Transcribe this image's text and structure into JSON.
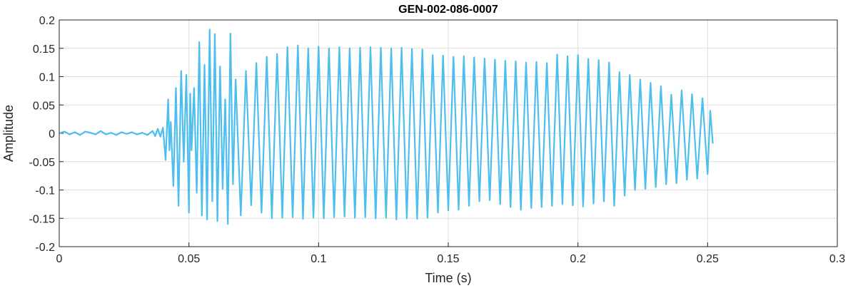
{
  "chart_data": {
    "type": "line",
    "title": "GEN-002-086-0007",
    "xlabel": "Time (s)",
    "ylabel": "Amplitude",
    "xlim": [
      0,
      0.3
    ],
    "ylim": [
      -0.2,
      0.2
    ],
    "grid": true,
    "x_ticks": [
      "0",
      "0.05",
      "0.1",
      "0.15",
      "0.2",
      "0.25",
      "0.3"
    ],
    "y_ticks": [
      "0.2",
      "0.15",
      "0.1",
      "0.05",
      "0",
      "-0.05",
      "-0.1",
      "-0.15",
      "-0.2"
    ],
    "series": [
      {
        "color": "#4DBEEE",
        "x": [
          0,
          0.002,
          0.004,
          0.006,
          0.008,
          0.01,
          0.012,
          0.014,
          0.016,
          0.018,
          0.02,
          0.022,
          0.024,
          0.026,
          0.028,
          0.03,
          0.032,
          0.034,
          0.036,
          0.037,
          0.038,
          0.039,
          0.04,
          0.041,
          0.042,
          0.0425,
          0.043,
          0.044,
          0.045,
          0.046,
          0.047,
          0.048,
          0.049,
          0.05,
          0.0505,
          0.051,
          0.052,
          0.053,
          0.054,
          0.055,
          0.056,
          0.057,
          0.058,
          0.059,
          0.06,
          0.061,
          0.062,
          0.063,
          0.064,
          0.065,
          0.066,
          0.067,
          0.068,
          0.07,
          0.072,
          0.074,
          0.076,
          0.078,
          0.08,
          0.082,
          0.084,
          0.086,
          0.088,
          0.09,
          0.092,
          0.094,
          0.096,
          0.098,
          0.1,
          0.102,
          0.104,
          0.106,
          0.108,
          0.11,
          0.112,
          0.114,
          0.116,
          0.118,
          0.12,
          0.122,
          0.124,
          0.126,
          0.128,
          0.13,
          0.132,
          0.134,
          0.136,
          0.138,
          0.14,
          0.142,
          0.144,
          0.146,
          0.148,
          0.15,
          0.152,
          0.154,
          0.156,
          0.158,
          0.16,
          0.162,
          0.164,
          0.166,
          0.168,
          0.17,
          0.172,
          0.174,
          0.176,
          0.178,
          0.18,
          0.182,
          0.184,
          0.186,
          0.188,
          0.19,
          0.192,
          0.194,
          0.196,
          0.198,
          0.2,
          0.202,
          0.204,
          0.206,
          0.208,
          0.21,
          0.212,
          0.214,
          0.216,
          0.218,
          0.22,
          0.222,
          0.224,
          0.226,
          0.228,
          0.23,
          0.232,
          0.234,
          0.236,
          0.238,
          0.24,
          0.242,
          0.244,
          0.246,
          0.248,
          0.25,
          0.251,
          0.252
        ],
        "y": [
          0,
          0.003,
          -0.002,
          0.002,
          -0.003,
          0.003,
          0.001,
          -0.002,
          0.004,
          -0.002,
          0.001,
          -0.003,
          0.002,
          -0.001,
          0.002,
          -0.002,
          0.001,
          -0.003,
          0.004,
          -0.005,
          0.008,
          -0.006,
          0.01,
          -0.047,
          0.06,
          -0.03,
          0.02,
          -0.093,
          0.08,
          -0.128,
          0.11,
          -0.05,
          0.103,
          -0.14,
          0.07,
          -0.03,
          0.08,
          -0.105,
          0.161,
          -0.145,
          0.121,
          -0.152,
          0.183,
          -0.12,
          0.175,
          -0.155,
          0.118,
          -0.098,
          0.06,
          -0.16,
          0.176,
          -0.09,
          0.095,
          -0.145,
          0.11,
          -0.127,
          0.124,
          -0.14,
          0.135,
          -0.15,
          0.14,
          -0.149,
          0.152,
          -0.148,
          0.155,
          -0.151,
          0.15,
          -0.149,
          0.153,
          -0.15,
          0.15,
          -0.148,
          0.152,
          -0.147,
          0.15,
          -0.149,
          0.151,
          -0.148,
          0.152,
          -0.15,
          0.151,
          -0.149,
          0.15,
          -0.152,
          0.151,
          -0.15,
          0.149,
          -0.151,
          0.148,
          -0.149,
          0.138,
          -0.14,
          0.137,
          -0.136,
          0.135,
          -0.135,
          0.136,
          -0.128,
          0.134,
          -0.12,
          0.132,
          -0.118,
          0.13,
          -0.125,
          0.128,
          -0.13,
          0.127,
          -0.135,
          0.125,
          -0.132,
          0.126,
          -0.13,
          0.124,
          -0.128,
          0.139,
          -0.125,
          0.136,
          -0.127,
          0.138,
          -0.129,
          0.131,
          -0.124,
          0.129,
          -0.12,
          0.125,
          -0.128,
          0.108,
          -0.11,
          0.103,
          -0.1,
          0.095,
          -0.098,
          0.089,
          -0.095,
          0.083,
          -0.09,
          0.068,
          -0.088,
          0.076,
          -0.082,
          0.069,
          -0.08,
          0.062,
          -0.072,
          0.04,
          -0.018
        ]
      }
    ]
  }
}
